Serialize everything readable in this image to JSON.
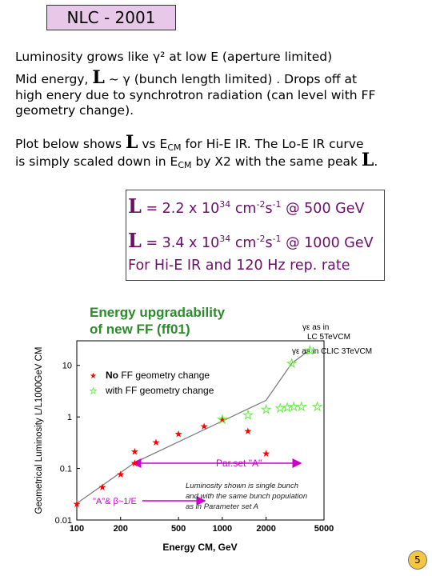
{
  "slide": {
    "title": "NLC - 2001",
    "line1": "Luminosity grows like γ² at low E (aperture limited)",
    "line2_pre": "Mid energy, ",
    "line2_L": "L",
    "line2_post": " ~ γ (bunch length limited) .   Drops off at",
    "line3": "high enery due to synchrotron radiation (can level with FF",
    "line4": "geometry change).",
    "line5_pre": "Plot below shows ",
    "line5_L": "L",
    "line5_mid": " vs E",
    "line5_sub": "CM",
    "line5_post": " for Hi-E IR.  The Lo-E IR curve",
    "line6_pre": "is simply scaled down in E",
    "line6_sub": "CM",
    "line6_mid": " by X2 with the same peak ",
    "line6_L": "L",
    "line6_end": ".",
    "eq1_L": "L",
    "eq1_pre": " = 2.2 x 10",
    "eq1_exp": "34",
    "eq1_unit1": " cm",
    "eq1_unit_exp1": "-2",
    "eq1_unit2": "s",
    "eq1_unit_exp2": "-1",
    "eq1_post": "  @ 500 GeV",
    "eq2_L": "L",
    "eq2_pre": " = 3.4 x 10",
    "eq2_exp": "34",
    "eq2_unit1": " cm",
    "eq2_unit_exp1": "-2",
    "eq2_unit2": "s",
    "eq2_unit_exp2": "-1",
    "eq2_post": "  @ 1000 GeV",
    "eq3": "For Hi-E IR and 120 Hz rep. rate",
    "page_number": "5"
  },
  "plot_labels": {
    "heading1": "Energy upgradability",
    "heading2": "of new FF (ff01)",
    "legend_red": "No FF geometry change",
    "legend_red_bold": "No",
    "legend_red_rest": " FF geometry change",
    "legend_green": "with FF geometry change",
    "ann_lc1": "γε as in",
    "ann_lc2": "LC 5TeVCM",
    "ann_clic": "γε as in CLIC 3TeVCM",
    "parset": "Par.set \"A\"",
    "ab": "\"A\"& β~1/E",
    "note1": "Luminosity shown is single bunch",
    "note2": "and with the same bunch population",
    "note3": "as in Parameter set A"
  },
  "chart_data": {
    "type": "scatter",
    "title": "Energy upgradability of new FF (ff01)",
    "xlabel": "Energy CM, GeV",
    "ylabel": "Geometrical Luminosity  L/L1000GeV CM",
    "x_scale": "log",
    "y_scale": "log",
    "xlim": [
      100,
      5000
    ],
    "ylim": [
      0.01,
      30
    ],
    "x_ticks": [
      "100",
      "200",
      "500",
      "1000",
      "2000",
      "5000"
    ],
    "y_ticks": [
      "0.01",
      "0.1",
      "1",
      "10"
    ],
    "colors": {
      "red": "#ff0000",
      "green": "#66ee44",
      "line": "#7f7f7f",
      "magenta": "#cc00cc",
      "heading": "#2d8a2d"
    },
    "series": [
      {
        "name": "No FF geometry change",
        "color": "#ff0000",
        "x": [
          100,
          150,
          200,
          250,
          250,
          350,
          500,
          750,
          1000,
          1500,
          2000
        ],
        "y": [
          0.021,
          0.045,
          0.08,
          0.13,
          0.22,
          0.33,
          0.48,
          0.68,
          0.9,
          0.55,
          0.2
        ]
      },
      {
        "name": "with FF geometry change",
        "color": "#66ee44",
        "x": [
          1000,
          1500,
          2000,
          2500,
          2800,
          3100,
          3500,
          4500
        ],
        "y": [
          0.9,
          1.1,
          1.4,
          1.5,
          1.55,
          1.6,
          1.6,
          1.6
        ]
      },
      {
        "name": "LC 5TeVCM",
        "color": "#66ee44",
        "x": [
          3000,
          4000
        ],
        "y": [
          11,
          20
        ]
      }
    ],
    "lines": [
      {
        "x": [
          100,
          250
        ],
        "y": [
          0.021,
          0.13
        ]
      },
      {
        "x": [
          250,
          2000
        ],
        "y": [
          0.13,
          2.1
        ]
      },
      {
        "x": [
          2000,
          3000
        ],
        "y": [
          2.1,
          11
        ]
      },
      {
        "x": [
          3000,
          4000
        ],
        "y": [
          11,
          20
        ]
      }
    ]
  }
}
